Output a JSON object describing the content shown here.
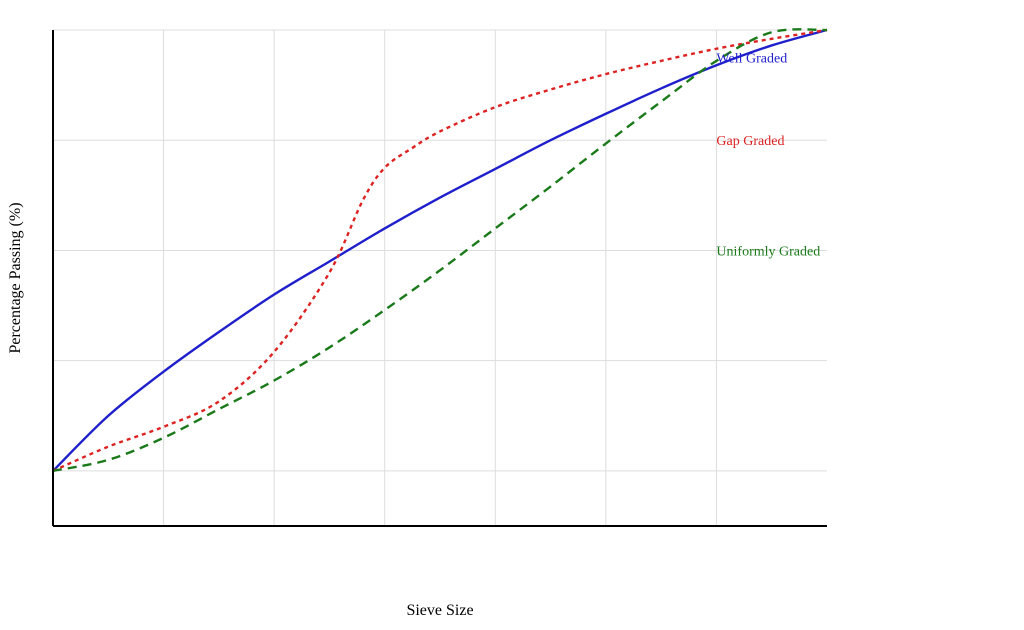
{
  "chart_data": {
    "type": "line",
    "title": "",
    "xlabel": "Sieve Size",
    "ylabel": "Percentage Passing (%)",
    "xlim": [
      0,
      7
    ],
    "ylim": [
      -0.5,
      4
    ],
    "grid": true,
    "x_ticks": [
      1,
      2,
      3,
      4,
      5,
      6
    ],
    "y_ticks": [
      0,
      1,
      2,
      3,
      4
    ],
    "tick_labels_visible": false,
    "legend": "inline-right",
    "series": [
      {
        "name": "Well Graded",
        "color": "#1f1fcc",
        "dash": "solid",
        "x": [
          0,
          0.5,
          1,
          1.5,
          2,
          2.5,
          3,
          3.5,
          4,
          4.5,
          5,
          5.5,
          6,
          6.5,
          7
        ],
        "y": [
          0,
          0.5,
          0.9,
          1.26,
          1.6,
          1.9,
          2.2,
          2.48,
          2.74,
          3.0,
          3.24,
          3.47,
          3.68,
          3.86,
          4.0
        ]
      },
      {
        "name": "Gap Graded",
        "color": "#dd2222",
        "dash": "dotted",
        "x": [
          0,
          0.5,
          1,
          1.5,
          2,
          2.5,
          2.8,
          3,
          3.25,
          3.5,
          4,
          4.5,
          5,
          5.5,
          6,
          6.5,
          7
        ],
        "y": [
          0,
          0.22,
          0.4,
          0.63,
          1.08,
          1.8,
          2.45,
          2.75,
          2.93,
          3.08,
          3.3,
          3.46,
          3.6,
          3.72,
          3.83,
          3.92,
          4.0
        ]
      },
      {
        "name": "Uniformly Graded",
        "color": "#1a7a1a",
        "dash": "dashed",
        "x": [
          0,
          0.5,
          1,
          1.5,
          2,
          2.5,
          3,
          3.5,
          4,
          4.5,
          5,
          5.5,
          6,
          6.5,
          7
        ],
        "y": [
          0,
          0.1,
          0.3,
          0.56,
          0.82,
          1.12,
          1.46,
          1.82,
          2.2,
          2.58,
          2.97,
          3.35,
          3.72,
          3.98,
          4.0
        ]
      }
    ]
  }
}
